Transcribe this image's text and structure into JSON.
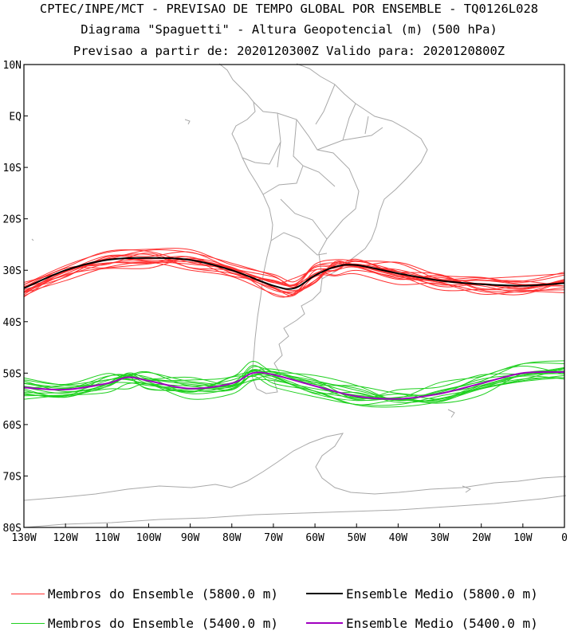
{
  "header": {
    "line1": "CPTEC/INPE/MCT - PREVISAO DE TEMPO GLOBAL POR ENSEMBLE - TQ0126L028",
    "line2": "Diagrama \"Spaguetti\" - Altura Geopotencial (m) (500 hPa)",
    "line3": "Previsao a partir de: 2020120300Z  Valido para: 2020120800Z"
  },
  "axes": {
    "lat_labels": [
      "10N",
      "EQ",
      "10S",
      "20S",
      "30S",
      "40S",
      "50S",
      "60S",
      "70S",
      "80S"
    ],
    "lon_labels": [
      "130W",
      "120W",
      "110W",
      "100W",
      "90W",
      "80W",
      "70W",
      "60W",
      "50W",
      "40W",
      "30W",
      "20W",
      "10W",
      "0"
    ]
  },
  "legend": [
    {
      "label": "Membros do Ensemble (5800.0 m)",
      "color": "#ff3030",
      "kind": "members"
    },
    {
      "label": "Ensemble Medio (5800.0 m)",
      "color": "#000000",
      "kind": "mean"
    },
    {
      "label": "Membros do Ensemble (5400.0 m)",
      "color": "#20d020",
      "kind": "members"
    },
    {
      "label": "Ensemble Medio (5400.0 m)",
      "color": "#a000c0",
      "kind": "mean"
    }
  ],
  "chart_data": {
    "type": "line",
    "xlim": [
      -130,
      0
    ],
    "ylim": [
      -80,
      10
    ],
    "series": [
      {
        "name": "Ensemble Medio (5800.0 m)",
        "color": "#000000",
        "x": [
          -130,
          -120,
          -110,
          -100,
          -90,
          -80,
          -70,
          -65,
          -60,
          -55,
          -50,
          -40,
          -30,
          -20,
          -10,
          0
        ],
        "y": [
          -33.5,
          -30.0,
          -28.0,
          -27.6,
          -28.0,
          -30.0,
          -33.0,
          -33.5,
          -31.0,
          -29.3,
          -29.0,
          -30.6,
          -32.0,
          -32.7,
          -33.0,
          -32.5
        ]
      },
      {
        "name": "Ensemble Medio (5400.0 m)",
        "color": "#a000c0",
        "x": [
          -130,
          -120,
          -110,
          -105,
          -100,
          -90,
          -80,
          -75,
          -70,
          -60,
          -50,
          -40,
          -30,
          -20,
          -10,
          0
        ],
        "y": [
          -52.8,
          -53.2,
          -52.0,
          -50.8,
          -51.5,
          -53.0,
          -52.0,
          -50.0,
          -50.3,
          -52.5,
          -54.5,
          -55.0,
          -54.0,
          -52.0,
          -50.0,
          -49.8
        ]
      }
    ]
  }
}
